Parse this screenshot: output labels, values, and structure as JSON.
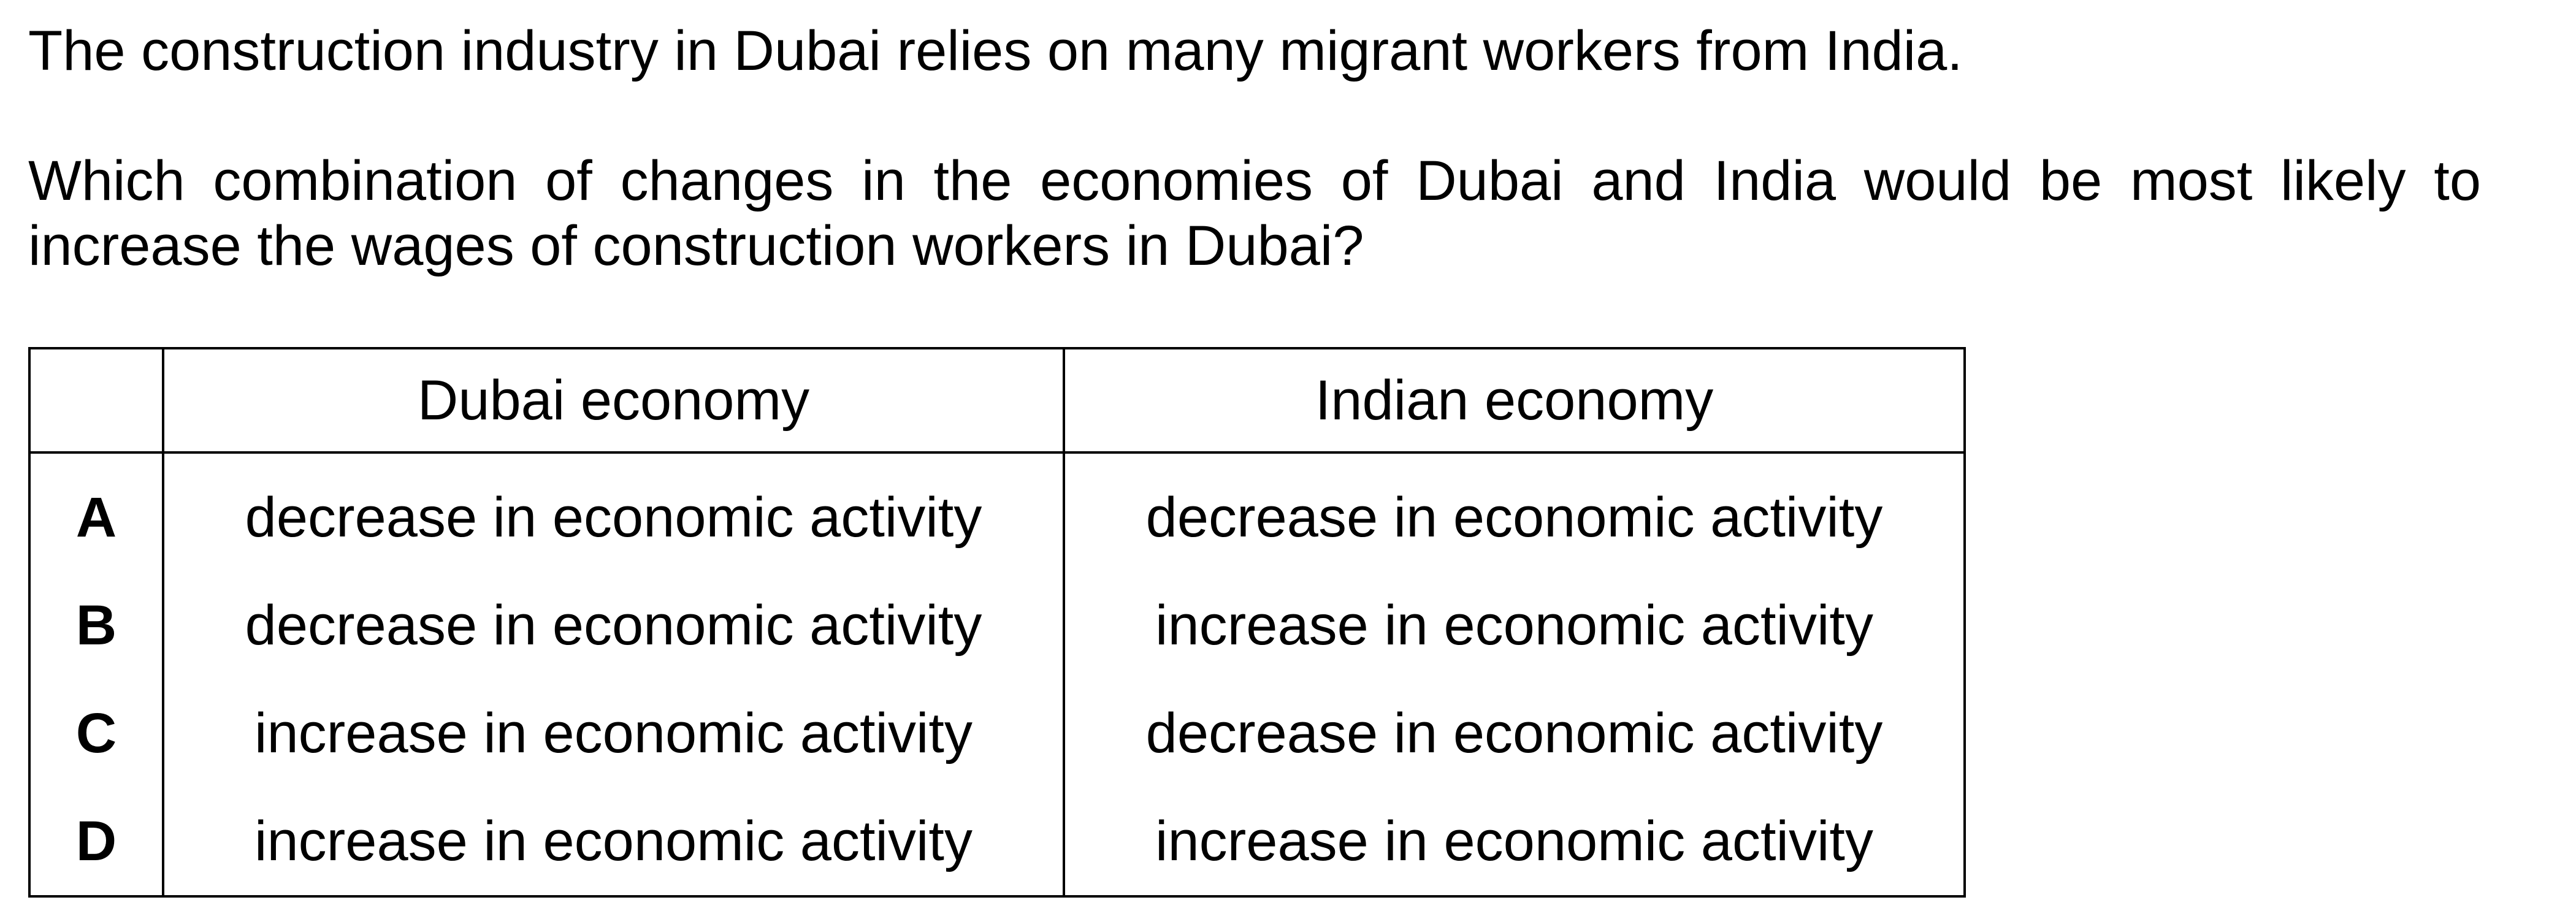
{
  "stem": {
    "intro": "The construction industry in Dubai relies on many migrant workers from India.",
    "question": "Which combination of changes in the economies of Dubai and India would be most likely to increase the wages of construction workers in Dubai?"
  },
  "table": {
    "headers": [
      "",
      "Dubai economy",
      "Indian economy"
    ],
    "rows": [
      {
        "letter": "A",
        "dubai": "decrease in economic activity",
        "india": "decrease in economic activity"
      },
      {
        "letter": "B",
        "dubai": "decrease in economic activity",
        "india": "increase in economic activity"
      },
      {
        "letter": "C",
        "dubai": "increase in economic activity",
        "india": "decrease in economic activity"
      },
      {
        "letter": "D",
        "dubai": "increase in economic activity",
        "india": "increase in economic activity"
      }
    ]
  }
}
